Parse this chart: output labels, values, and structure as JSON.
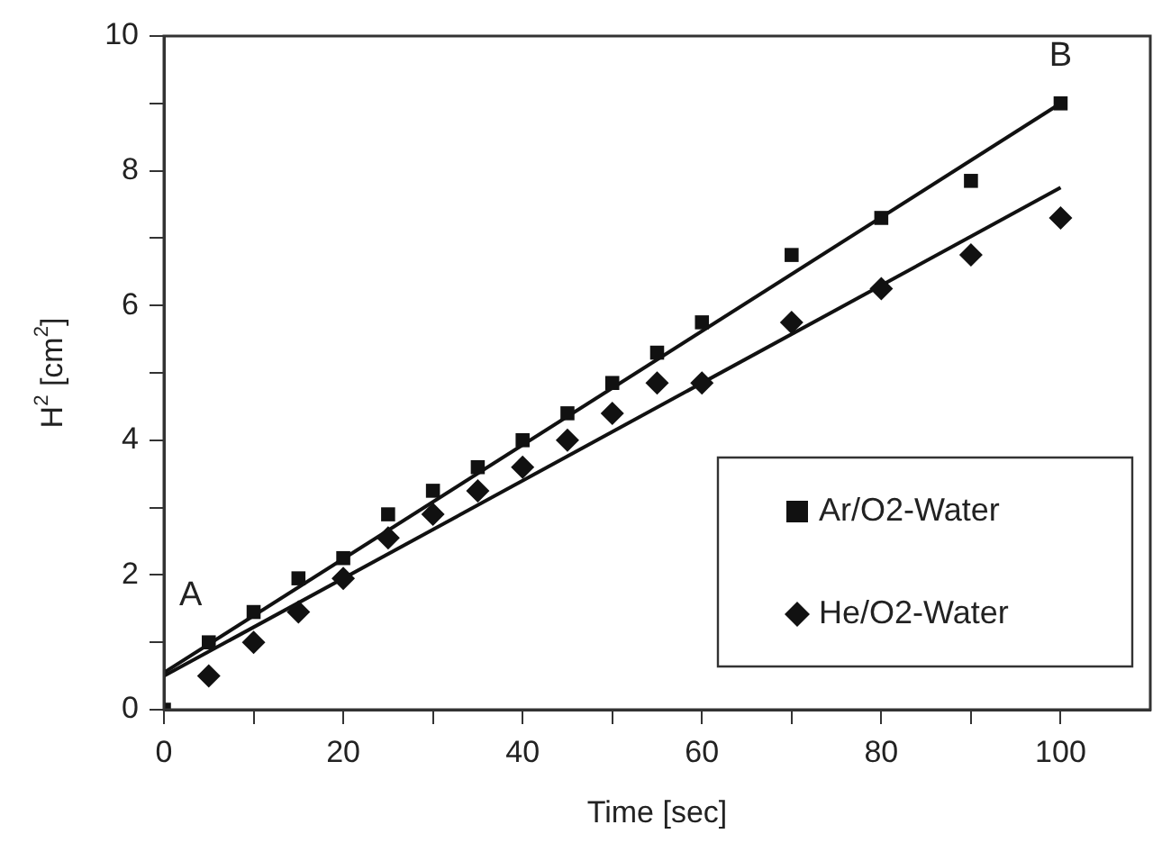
{
  "chart_data": {
    "type": "scatter",
    "xlabel": "Time [sec]",
    "ylabel": "H$^{2}$ [cm$^{2}$]",
    "xlim": [
      0,
      110
    ],
    "ylim": [
      0,
      10
    ],
    "xticks": [
      0,
      {
        "value": 10,
        "label": null
      },
      20,
      {
        "value": 30,
        "label": null
      },
      40,
      {
        "value": 50,
        "label": null
      },
      60,
      {
        "value": 70,
        "label": null
      },
      80,
      {
        "value": 90,
        "label": null
      },
      100
    ],
    "yticks": [
      0,
      {
        "value": 1,
        "label": null
      },
      2,
      {
        "value": 3,
        "label": null
      },
      4,
      {
        "value": 5,
        "label": null
      },
      6,
      {
        "value": 7,
        "label": null
      },
      8,
      {
        "value": 9,
        "label": null
      },
      10
    ],
    "grid": false,
    "legend": "bottom right",
    "annotations": [
      "A",
      "B"
    ],
    "series": [
      {
        "name": "Ar/O2-Water",
        "marker": "square",
        "color": "#111111",
        "x": [
          0,
          5,
          10,
          15,
          20,
          25,
          30,
          35,
          40,
          45,
          50,
          55,
          60,
          70,
          80,
          90,
          100
        ],
        "values": [
          0,
          1.0,
          1.45,
          1.95,
          2.25,
          2.9,
          3.25,
          3.6,
          4.0,
          4.4,
          4.85,
          5.3,
          5.75,
          6.75,
          7.3,
          7.85,
          9.0
        ]
      },
      {
        "name": "He/O2-Water",
        "marker": "diamond",
        "color": "#111111",
        "x": [
          5,
          10,
          15,
          20,
          25,
          30,
          35,
          40,
          45,
          50,
          55,
          60,
          70,
          80,
          90,
          100
        ],
        "values": [
          0.5,
          1.0,
          1.45,
          1.95,
          2.55,
          2.9,
          3.25,
          3.6,
          4.0,
          4.4,
          4.85,
          4.85,
          5.75,
          6.25,
          6.75,
          7.3
        ]
      },
      {
        "type": "line",
        "marker": "none",
        "color": "#111111",
        "x": [
          0,
          100
        ],
        "values": [
          0.55,
          9.0
        ]
      },
      {
        "type": "line",
        "marker": "none",
        "color": "#111111",
        "x": [
          0,
          100
        ],
        "values": [
          0.5,
          7.75
        ]
      }
    ]
  }
}
